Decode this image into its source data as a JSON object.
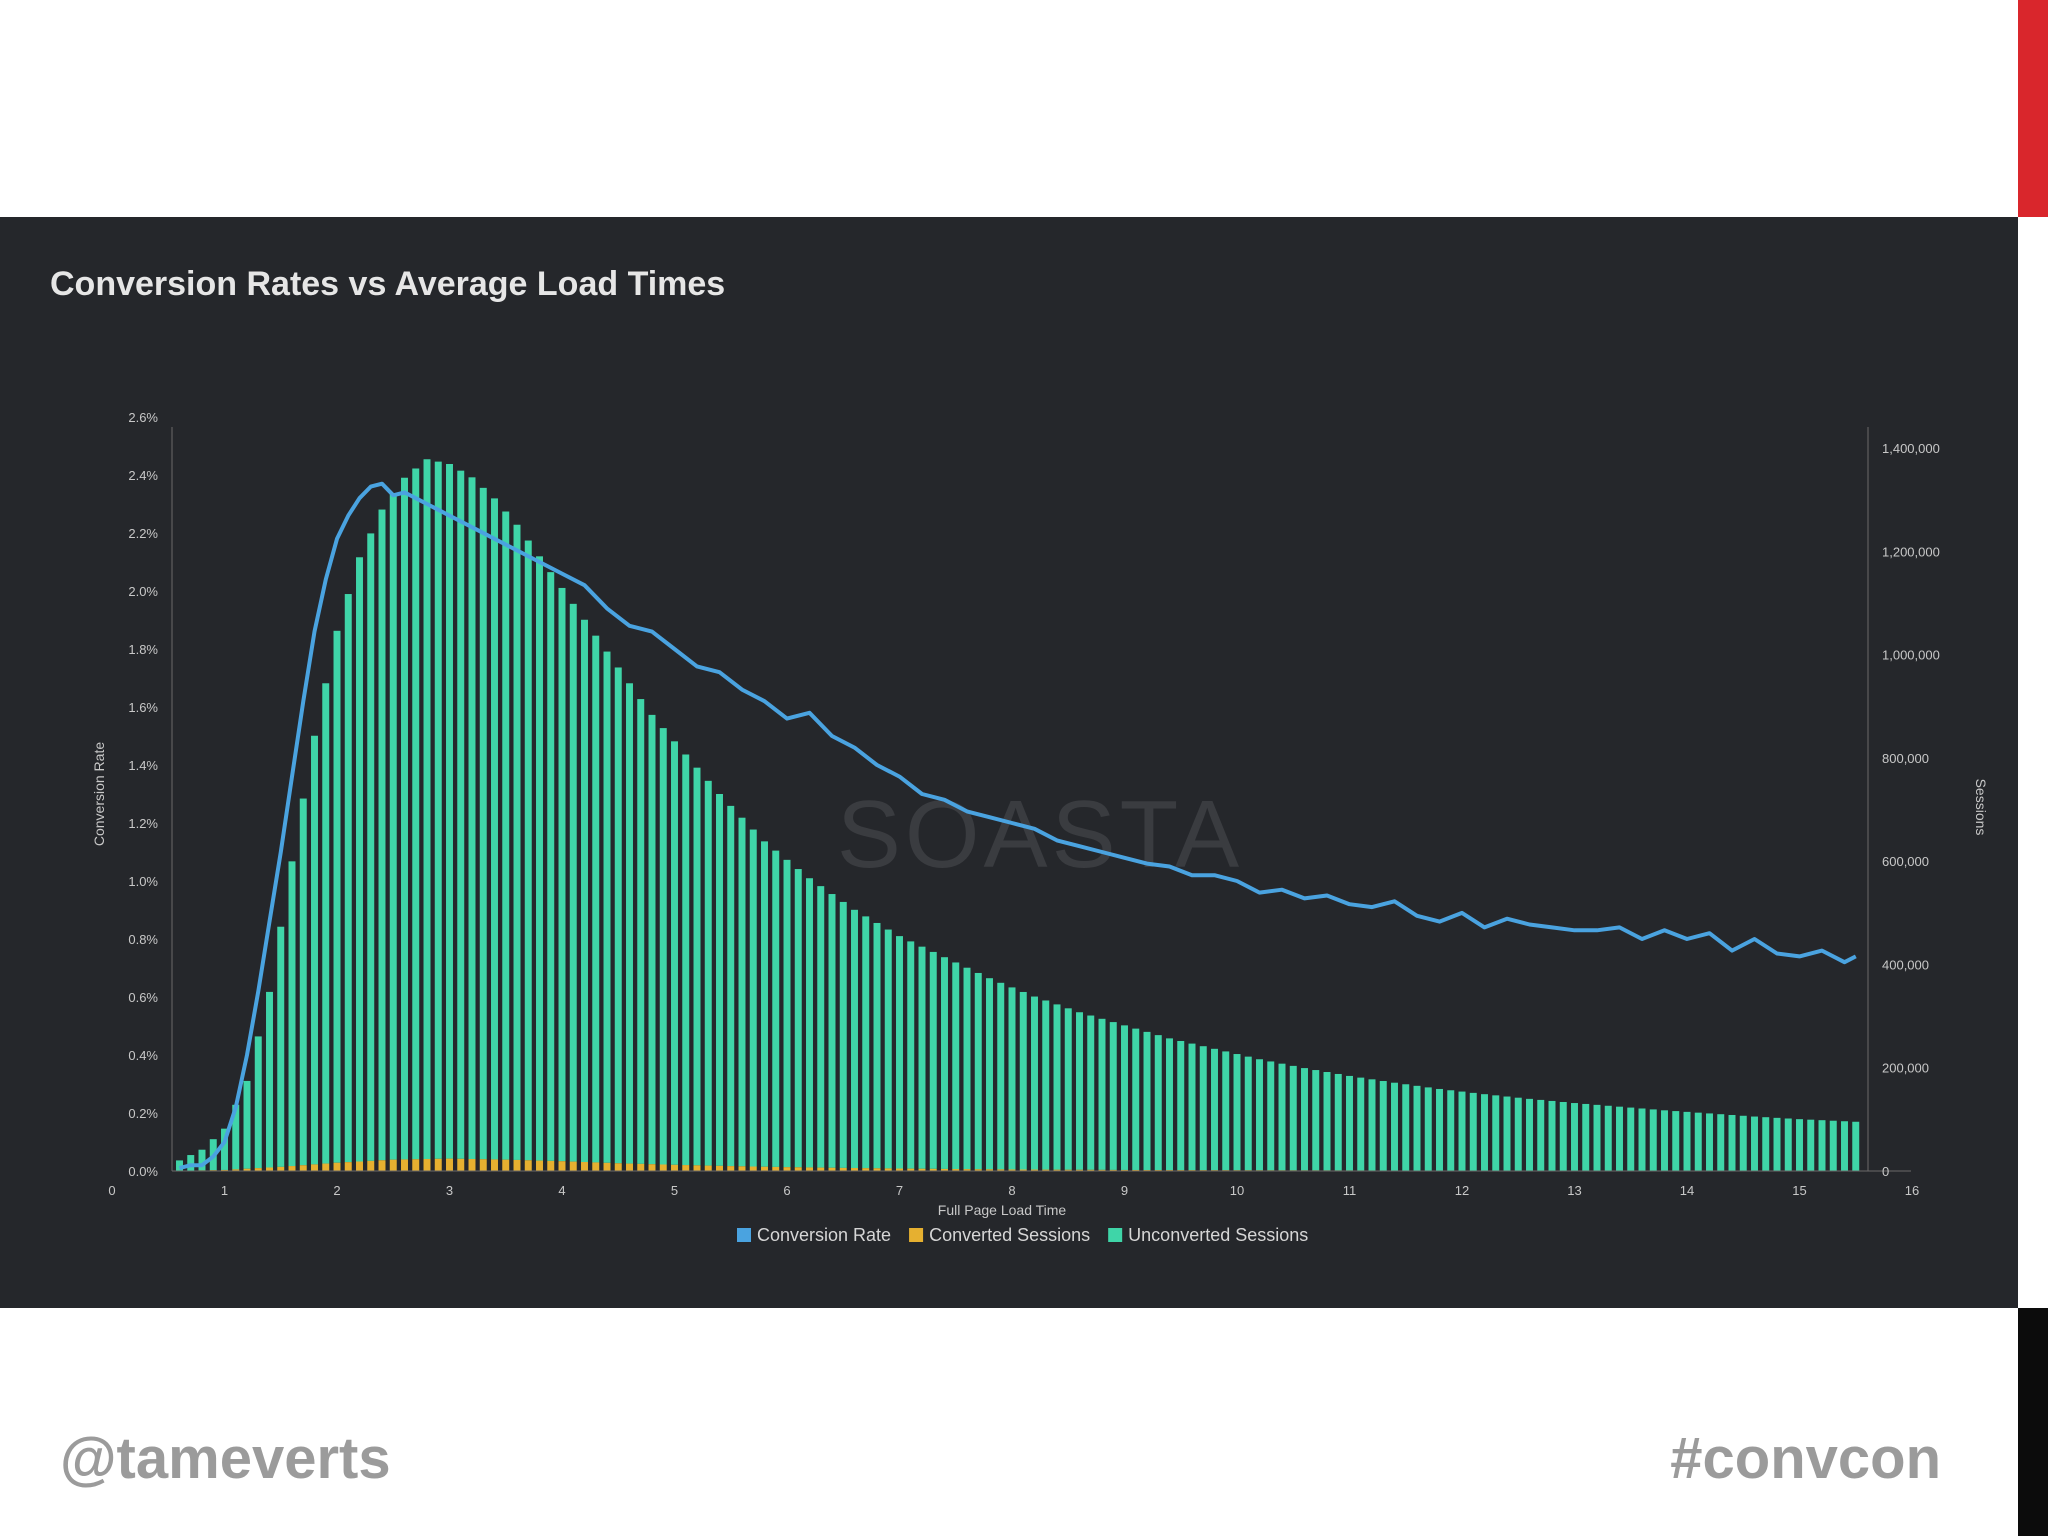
{
  "slide": {
    "handle": "@tameverts",
    "hashtag": "#convcon",
    "accent_top": "#d9262c",
    "accent_bottom": "#0c0c0c",
    "panel_bg": "#25272b"
  },
  "watermark": "SOASTA",
  "chart_data": {
    "type": "bar",
    "title": "Conversion Rates vs Average Load Times",
    "xlabel": "Full Page Load Time",
    "ylabel_left": "Conversion Rate",
    "ylabel_right": "Sessions",
    "xlim": [
      0,
      16
    ],
    "ylim_left": [
      0,
      2.6
    ],
    "ylim_right": [
      0,
      1460000
    ],
    "x_ticks": [
      "0",
      "1",
      "2",
      "3",
      "4",
      "5",
      "6",
      "7",
      "8",
      "9",
      "10",
      "11",
      "12",
      "13",
      "14",
      "15",
      "16"
    ],
    "y_left_ticks": [
      "0.0%",
      "0.2%",
      "0.4%",
      "0.6%",
      "0.8%",
      "1.0%",
      "1.2%",
      "1.4%",
      "1.6%",
      "1.8%",
      "2.0%",
      "2.2%",
      "2.4%",
      "2.6%"
    ],
    "y_right_ticks": [
      "0",
      "200,000",
      "400,000",
      "600,000",
      "800,000",
      "1,000,000",
      "1,200,000",
      "1,400,000"
    ],
    "grid": false,
    "legend_position": "bottom-center",
    "legend": [
      {
        "label": "Conversion Rate",
        "color": "#4aa3e0"
      },
      {
        "label": "Converted Sessions",
        "color": "#e6b030"
      },
      {
        "label": "Unconverted Sessions",
        "color": "#3fd5a8"
      }
    ],
    "series": [
      {
        "name": "Conversion Rate",
        "axis": "left",
        "points": [
          [
            0.6,
            0.01
          ],
          [
            0.7,
            0.02
          ],
          [
            0.8,
            0.02
          ],
          [
            0.9,
            0.05
          ],
          [
            1.0,
            0.1
          ],
          [
            1.1,
            0.22
          ],
          [
            1.2,
            0.4
          ],
          [
            1.3,
            0.62
          ],
          [
            1.4,
            0.86
          ],
          [
            1.5,
            1.1
          ],
          [
            1.6,
            1.36
          ],
          [
            1.7,
            1.62
          ],
          [
            1.8,
            1.86
          ],
          [
            1.9,
            2.04
          ],
          [
            2.0,
            2.18
          ],
          [
            2.1,
            2.26
          ],
          [
            2.2,
            2.32
          ],
          [
            2.3,
            2.36
          ],
          [
            2.4,
            2.37
          ],
          [
            2.5,
            2.33
          ],
          [
            2.6,
            2.34
          ],
          [
            2.7,
            2.32
          ],
          [
            2.8,
            2.3
          ],
          [
            2.9,
            2.28
          ],
          [
            3.0,
            2.26
          ],
          [
            3.2,
            2.22
          ],
          [
            3.4,
            2.18
          ],
          [
            3.6,
            2.14
          ],
          [
            3.8,
            2.1
          ],
          [
            4.0,
            2.06
          ],
          [
            4.2,
            2.02
          ],
          [
            4.4,
            1.94
          ],
          [
            4.6,
            1.88
          ],
          [
            4.8,
            1.86
          ],
          [
            5.0,
            1.8
          ],
          [
            5.2,
            1.74
          ],
          [
            5.4,
            1.72
          ],
          [
            5.6,
            1.66
          ],
          [
            5.8,
            1.62
          ],
          [
            6.0,
            1.56
          ],
          [
            6.2,
            1.58
          ],
          [
            6.4,
            1.5
          ],
          [
            6.6,
            1.46
          ],
          [
            6.8,
            1.4
          ],
          [
            7.0,
            1.36
          ],
          [
            7.2,
            1.3
          ],
          [
            7.4,
            1.28
          ],
          [
            7.6,
            1.24
          ],
          [
            7.8,
            1.22
          ],
          [
            8.0,
            1.2
          ],
          [
            8.2,
            1.18
          ],
          [
            8.4,
            1.14
          ],
          [
            8.6,
            1.12
          ],
          [
            8.8,
            1.1
          ],
          [
            9.0,
            1.08
          ],
          [
            9.2,
            1.06
          ],
          [
            9.4,
            1.05
          ],
          [
            9.6,
            1.02
          ],
          [
            9.8,
            1.02
          ],
          [
            10.0,
            1.0
          ],
          [
            10.2,
            0.96
          ],
          [
            10.4,
            0.97
          ],
          [
            10.6,
            0.94
          ],
          [
            10.8,
            0.95
          ],
          [
            11.0,
            0.92
          ],
          [
            11.2,
            0.91
          ],
          [
            11.4,
            0.93
          ],
          [
            11.6,
            0.88
          ],
          [
            11.8,
            0.86
          ],
          [
            12.0,
            0.89
          ],
          [
            12.2,
            0.84
          ],
          [
            12.4,
            0.87
          ],
          [
            12.6,
            0.85
          ],
          [
            12.8,
            0.84
          ],
          [
            13.0,
            0.83
          ],
          [
            13.2,
            0.83
          ],
          [
            13.4,
            0.84
          ],
          [
            13.6,
            0.8
          ],
          [
            13.8,
            0.83
          ],
          [
            14.0,
            0.8
          ],
          [
            14.2,
            0.82
          ],
          [
            14.4,
            0.76
          ],
          [
            14.6,
            0.8
          ],
          [
            14.8,
            0.75
          ],
          [
            15.0,
            0.74
          ],
          [
            15.2,
            0.76
          ],
          [
            15.4,
            0.72
          ],
          [
            15.5,
            0.74
          ]
        ]
      },
      {
        "name": "Converted Sessions",
        "axis": "right",
        "points": [
          [
            0.6,
            500
          ],
          [
            1.0,
            2000
          ],
          [
            1.5,
            8000
          ],
          [
            2.0,
            16000
          ],
          [
            2.5,
            22000
          ],
          [
            3.0,
            24000
          ],
          [
            3.5,
            22000
          ],
          [
            4.0,
            19000
          ],
          [
            4.5,
            15000
          ],
          [
            5.0,
            12000
          ],
          [
            5.5,
            9500
          ],
          [
            6.0,
            7500
          ],
          [
            6.5,
            6000
          ],
          [
            7.0,
            4800
          ],
          [
            7.5,
            3800
          ],
          [
            8.0,
            3000
          ],
          [
            9.0,
            2000
          ],
          [
            10.0,
            1500
          ],
          [
            11.0,
            1100
          ],
          [
            12.0,
            800
          ],
          [
            13.0,
            600
          ],
          [
            14.0,
            500
          ],
          [
            15.0,
            400
          ],
          [
            15.5,
            350
          ]
        ]
      },
      {
        "name": "Unconverted Sessions",
        "axis": "right",
        "points": [
          [
            0.6,
            20000
          ],
          [
            0.8,
            40000
          ],
          [
            1.0,
            80000
          ],
          [
            1.2,
            170000
          ],
          [
            1.4,
            340000
          ],
          [
            1.6,
            590000
          ],
          [
            1.8,
            830000
          ],
          [
            2.0,
            1030000
          ],
          [
            2.2,
            1170000
          ],
          [
            2.4,
            1260000
          ],
          [
            2.6,
            1320000
          ],
          [
            2.8,
            1355000
          ],
          [
            3.0,
            1345000
          ],
          [
            3.2,
            1320000
          ],
          [
            3.4,
            1280000
          ],
          [
            3.6,
            1230000
          ],
          [
            3.8,
            1170000
          ],
          [
            4.0,
            1110000
          ],
          [
            4.2,
            1050000
          ],
          [
            4.4,
            990000
          ],
          [
            4.6,
            930000
          ],
          [
            4.8,
            870000
          ],
          [
            5.0,
            820000
          ],
          [
            5.4,
            720000
          ],
          [
            5.8,
            630000
          ],
          [
            6.2,
            560000
          ],
          [
            6.6,
            500000
          ],
          [
            7.0,
            450000
          ],
          [
            7.4,
            410000
          ],
          [
            7.8,
            370000
          ],
          [
            8.2,
            335000
          ],
          [
            8.6,
            305000
          ],
          [
            9.0,
            280000
          ],
          [
            9.4,
            255000
          ],
          [
            9.8,
            235000
          ],
          [
            10.2,
            215000
          ],
          [
            10.6,
            198000
          ],
          [
            11.0,
            183000
          ],
          [
            11.4,
            170000
          ],
          [
            11.8,
            158000
          ],
          [
            12.2,
            148000
          ],
          [
            12.6,
            139000
          ],
          [
            13.0,
            131000
          ],
          [
            13.4,
            124000
          ],
          [
            13.8,
            117000
          ],
          [
            14.2,
            111000
          ],
          [
            14.6,
            105000
          ],
          [
            15.0,
            100000
          ],
          [
            15.5,
            95000
          ]
        ]
      }
    ]
  }
}
